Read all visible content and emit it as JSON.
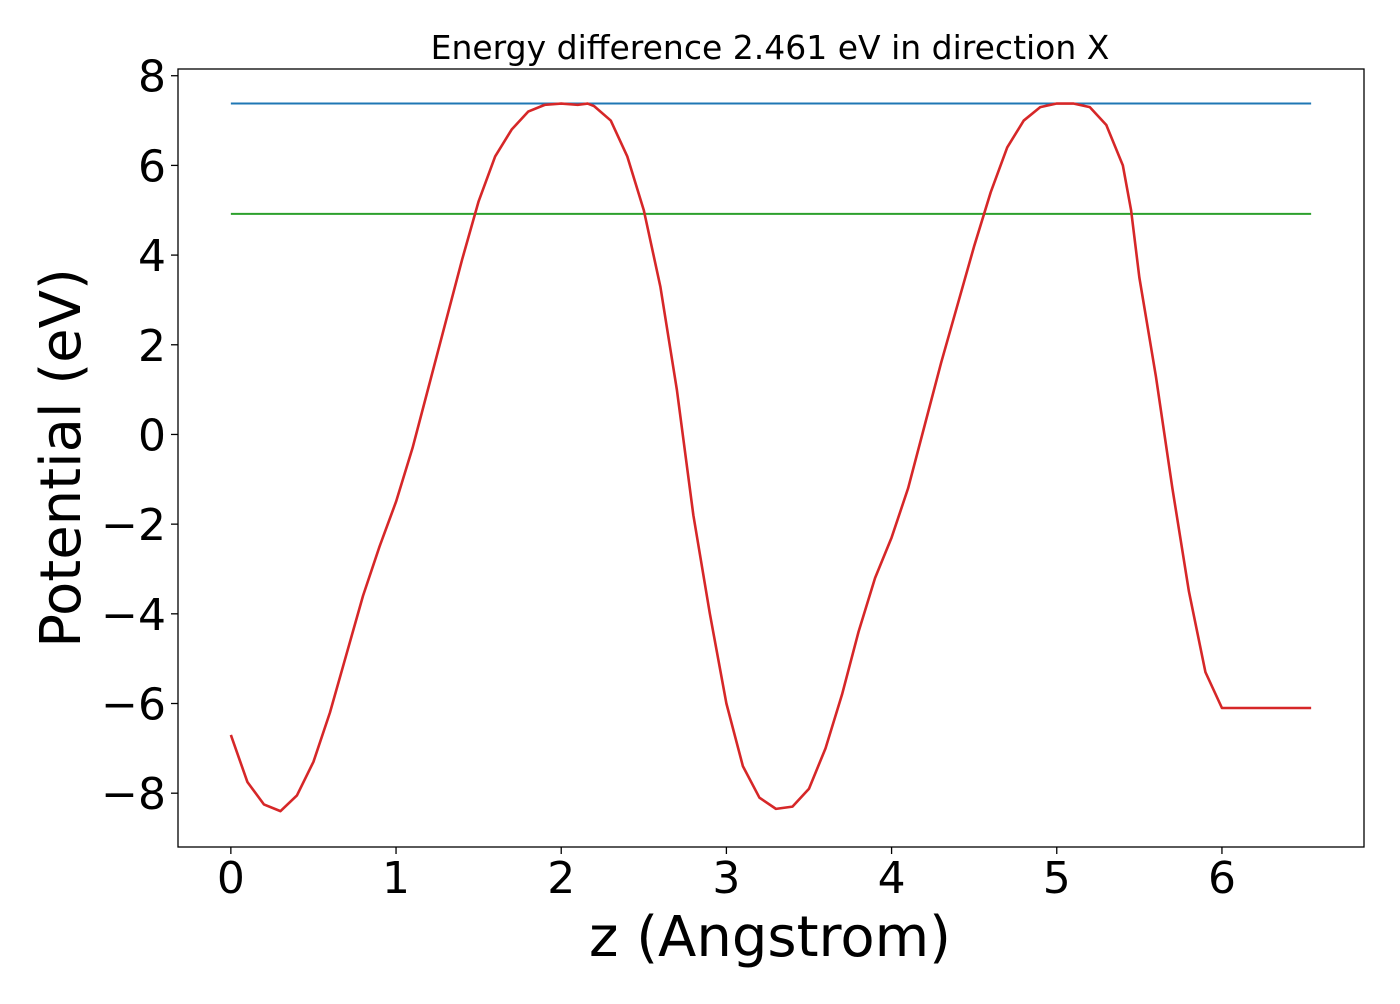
{
  "chart_data": {
    "type": "line",
    "title": "Energy difference 2.461 eV in direction X",
    "xlabel": "z (Angstrom)",
    "ylabel": "Potential (eV)",
    "xlim": [
      -0.32,
      6.86
    ],
    "ylim": [
      -9.2,
      8.15
    ],
    "xticks": [
      0,
      1,
      2,
      3,
      4,
      5,
      6
    ],
    "xtick_labels": [
      "0",
      "1",
      "2",
      "3",
      "4",
      "5",
      "6"
    ],
    "yticks": [
      -8,
      -6,
      -4,
      -2,
      0,
      2,
      4,
      6,
      8
    ],
    "ytick_labels": [
      "−8",
      "−6",
      "−4",
      "−2",
      "0",
      "2",
      "4",
      "6",
      "8"
    ],
    "grid": false,
    "series": [
      {
        "color": "#1f77b4",
        "x": [
          0,
          6.54
        ],
        "y": [
          7.38,
          7.38
        ]
      },
      {
        "color": "#2ca02c",
        "x": [
          0,
          6.54
        ],
        "y": [
          4.92,
          4.92
        ]
      },
      {
        "color": "#d62728",
        "x": [
          0.0,
          0.1,
          0.2,
          0.3,
          0.4,
          0.5,
          0.6,
          0.7,
          0.8,
          0.9,
          1.0,
          1.1,
          1.2,
          1.3,
          1.4,
          1.5,
          1.6,
          1.7,
          1.8,
          1.9,
          2.0,
          2.1,
          2.16,
          2.2,
          2.3,
          2.4,
          2.5,
          2.6,
          2.7,
          2.8,
          2.9,
          3.0,
          3.1,
          3.2,
          3.3,
          3.4,
          3.5,
          3.6,
          3.7,
          3.8,
          3.9,
          4.0,
          4.1,
          4.2,
          4.3,
          4.4,
          4.5,
          4.6,
          4.7,
          4.8,
          4.9,
          5.0,
          5.1,
          5.2,
          5.3,
          5.4,
          5.45,
          5.5,
          5.6,
          5.7,
          5.8,
          5.9,
          6.0,
          6.1,
          6.2,
          6.3,
          6.4,
          6.5,
          6.54
        ],
        "y": [
          -6.7,
          -7.75,
          -8.25,
          -8.4,
          -8.05,
          -7.3,
          -6.2,
          -4.9,
          -3.6,
          -2.5,
          -1.5,
          -0.3,
          1.1,
          2.5,
          3.9,
          5.2,
          6.2,
          6.8,
          7.2,
          7.35,
          7.38,
          7.35,
          7.38,
          7.32,
          7.0,
          6.2,
          5.0,
          3.3,
          1.0,
          -1.8,
          -4.0,
          -6.0,
          -7.4,
          -8.1,
          -8.35,
          -8.3,
          -7.9,
          -7.0,
          -5.8,
          -4.4,
          -3.2,
          -2.3,
          -1.2,
          0.2,
          1.6,
          2.9,
          4.2,
          5.4,
          6.4,
          7.0,
          7.3,
          7.38,
          7.38,
          7.3,
          6.9,
          6.0,
          5.0,
          3.5,
          1.3,
          -1.2,
          -3.5,
          -5.3,
          -6.1,
          -6.1,
          -6.1,
          -6.1,
          -6.1,
          -6.1,
          -6.1
        ]
      }
    ]
  }
}
